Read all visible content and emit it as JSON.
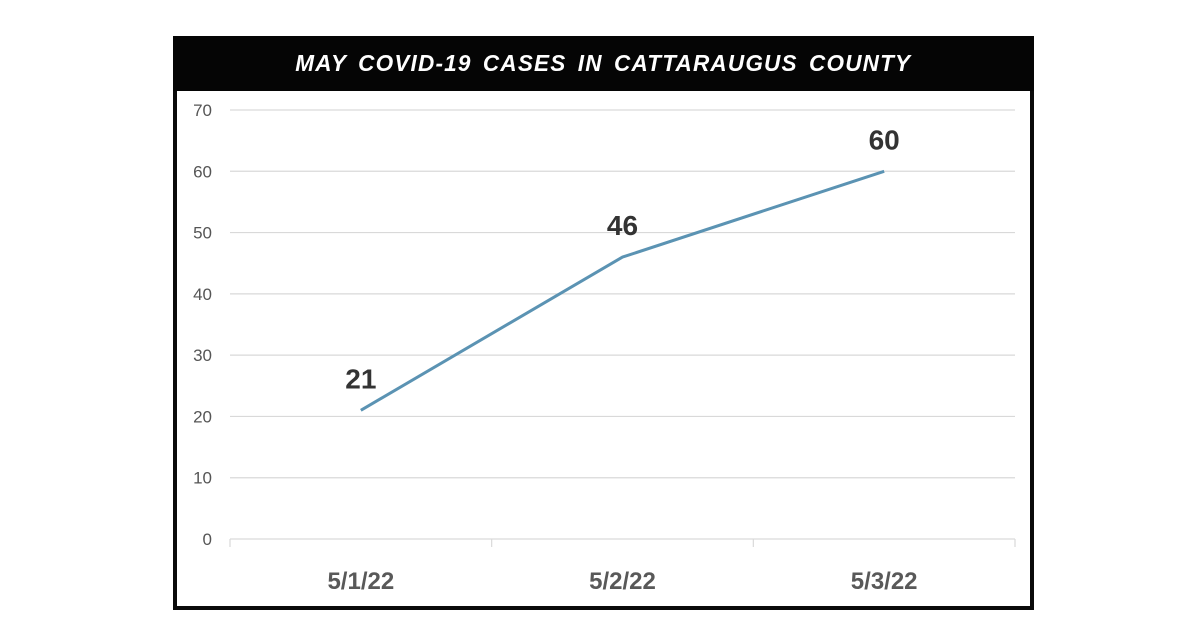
{
  "title": "MAY COVID-19 CASES IN CATTARAUGUS COUNTY",
  "colors": {
    "line": "#5b93b3",
    "title_bg": "#050505",
    "title_text": "#ffffff",
    "grid": "#d9d9d9",
    "frame": "#0a0a0a"
  },
  "chart_data": {
    "type": "line",
    "title": "MAY COVID-19 CASES IN CATTARAUGUS COUNTY",
    "xlabel": "",
    "ylabel": "",
    "categories": [
      "5/1/22",
      "5/2/22",
      "5/3/22"
    ],
    "series": [
      {
        "name": "Cases",
        "values": [
          21,
          46,
          60
        ]
      }
    ],
    "data_labels": [
      "21",
      "46",
      "60"
    ],
    "ylim": [
      0,
      70
    ],
    "yticks": [
      0,
      10,
      20,
      30,
      40,
      50,
      60,
      70
    ],
    "ytick_labels": [
      "0",
      "10",
      "20",
      "30",
      "40",
      "50",
      "60",
      "70"
    ],
    "grid": true,
    "legend": "none"
  }
}
